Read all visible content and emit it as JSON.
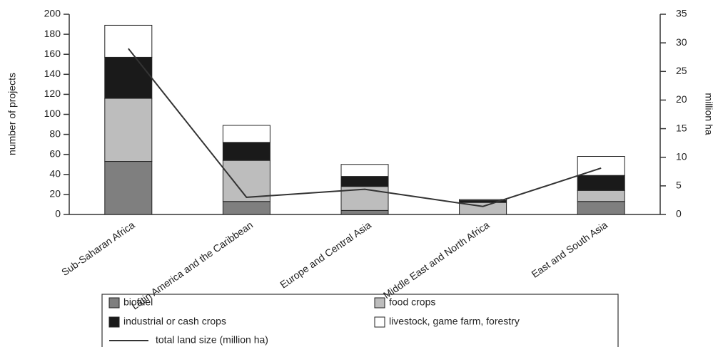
{
  "chart_data": {
    "type": "bar",
    "stacked": true,
    "ylabel": "number of projects",
    "y2label": "million ha",
    "categories": [
      "Sub-Saharan Africa",
      "Latin America and the Caribbean",
      "Europe and Central Asia",
      "Middle East and North Africa",
      "East and South Asia"
    ],
    "series": [
      {
        "name": "biofuel",
        "color": "#7f7f7f",
        "values": [
          53,
          13,
          4,
          0,
          13
        ]
      },
      {
        "name": "food crops",
        "color": "#bdbdbd",
        "values": [
          63,
          41,
          24,
          12,
          11
        ]
      },
      {
        "name": "industrial or cash crops",
        "color": "#1a1a1a",
        "values": [
          41,
          18,
          10,
          2,
          15
        ]
      },
      {
        "name": "livestock, game farm, forestry",
        "color": "#ffffff",
        "values": [
          32,
          17,
          12,
          1,
          19
        ]
      },
      {
        "name": "total land size (million ha)",
        "color": "#333333",
        "type": "line",
        "axis": "y2",
        "values": [
          29,
          3,
          4.4,
          1.4,
          8.1
        ]
      }
    ],
    "ylim": [
      0,
      200
    ],
    "yticks": [
      0,
      20,
      40,
      60,
      80,
      100,
      120,
      140,
      160,
      180,
      200
    ],
    "y2lim": [
      0,
      35
    ],
    "y2ticks": [
      0,
      5,
      10,
      15,
      20,
      25,
      30,
      35
    ],
    "grid": false,
    "legend": "bottom"
  }
}
